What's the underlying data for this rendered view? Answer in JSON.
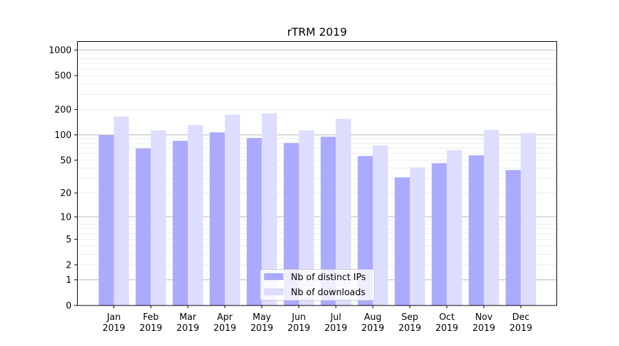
{
  "chart_data": {
    "type": "bar",
    "title": "rTRM 2019",
    "xlabel": "",
    "ylabel": "",
    "yscale": "symlog (log10(1+y))",
    "ylim": [
      0,
      1300
    ],
    "yticks": [
      0,
      1,
      2,
      5,
      10,
      20,
      50,
      100,
      200,
      500,
      1000
    ],
    "grid": true,
    "legend_position": "bottom-center",
    "categories": [
      "Jan\n2019",
      "Feb\n2019",
      "Mar\n2019",
      "Apr\n2019",
      "May\n2019",
      "Jun\n2019",
      "Jul\n2019",
      "Aug\n2019",
      "Sep\n2019",
      "Oct\n2019",
      "Nov\n2019",
      "Dec\n2019"
    ],
    "series": [
      {
        "name": "Nb of distinct IPs",
        "color": "#aaaaff",
        "values": [
          99,
          69,
          85,
          107,
          92,
          80,
          95,
          56,
          31,
          46,
          57,
          38
        ]
      },
      {
        "name": "Nb of downloads",
        "color": "#ddddff",
        "values": [
          165,
          113,
          131,
          174,
          180,
          113,
          155,
          75,
          41,
          66,
          115,
          105
        ]
      }
    ]
  }
}
